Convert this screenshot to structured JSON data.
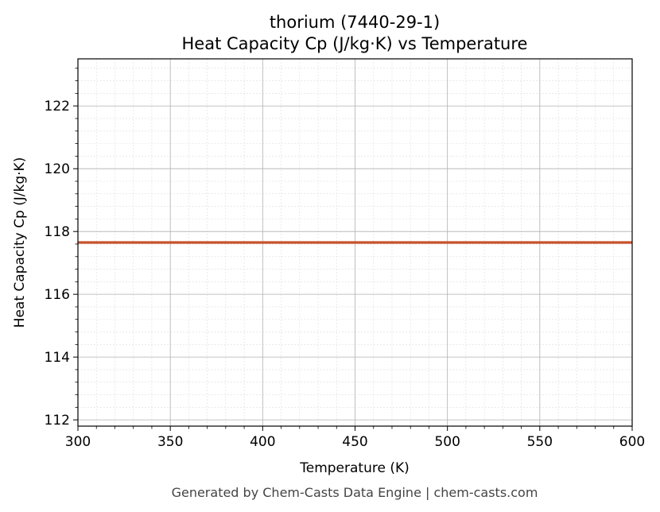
{
  "chart_data": {
    "type": "line",
    "title_line1": "thorium (7440-29-1)",
    "title_line2": "Heat Capacity Cp (J/kg·K) vs Temperature",
    "xlabel": "Temperature (K)",
    "ylabel": "Heat Capacity Cp (J/kg·K)",
    "xlim": [
      300,
      600
    ],
    "ylim": [
      111.8,
      123.5
    ],
    "x_ticks": [
      300,
      350,
      400,
      450,
      500,
      550,
      600
    ],
    "y_ticks": [
      112,
      114,
      116,
      118,
      120,
      122
    ],
    "grid": true,
    "minor_grid": true,
    "series": [
      {
        "color": "#c8522a",
        "x": [
          300,
          600
        ],
        "y": [
          117.65,
          117.65
        ]
      }
    ]
  },
  "footer": "Generated by Chem-Casts Data Engine | chem-casts.com"
}
